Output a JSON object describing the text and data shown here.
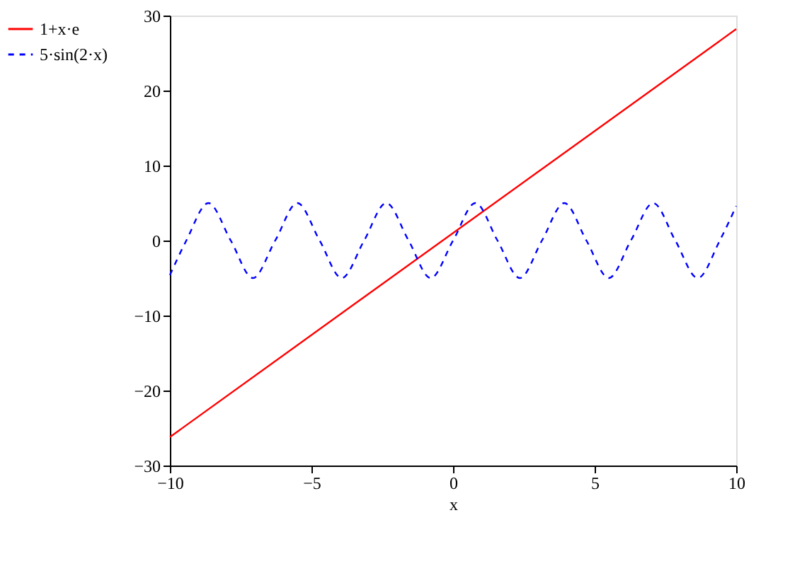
{
  "chart_data": {
    "type": "line",
    "xlabel": "x",
    "xlim": [
      -10,
      10
    ],
    "xticks": [
      -10,
      -5,
      0,
      5,
      10
    ],
    "ylim": [
      -30,
      30
    ],
    "yticks": [
      -30,
      -20,
      -10,
      0,
      10,
      20,
      30
    ],
    "grid": false,
    "legend": "left",
    "marker": "none",
    "series": [
      {
        "name": "1+x·e",
        "color": "#ff0000",
        "line_style": "solid",
        "x": [
          -10,
          10
        ],
        "values": [
          -26.2,
          28.2
        ]
      },
      {
        "name": "5·sin(2·x)",
        "color": "#0000ff",
        "line_style": "dashed",
        "x": [
          -10,
          -9.42,
          -8.64,
          -7.85,
          -7.07,
          -6.28,
          -5.5,
          -4.71,
          -3.93,
          -3.14,
          -2.36,
          -1.57,
          -0.79,
          0,
          0.79,
          1.57,
          2.36,
          3.14,
          3.93,
          4.71,
          5.5,
          6.28,
          7.07,
          7.85,
          8.64,
          9.42,
          10
        ],
        "values": [
          -4.6,
          0,
          5,
          0,
          -5,
          0,
          5,
          0,
          -5,
          0,
          5,
          0,
          -5,
          0,
          5,
          0,
          -5,
          0,
          5,
          0,
          -5,
          0,
          5,
          0,
          -5,
          0,
          4.6
        ]
      }
    ]
  }
}
